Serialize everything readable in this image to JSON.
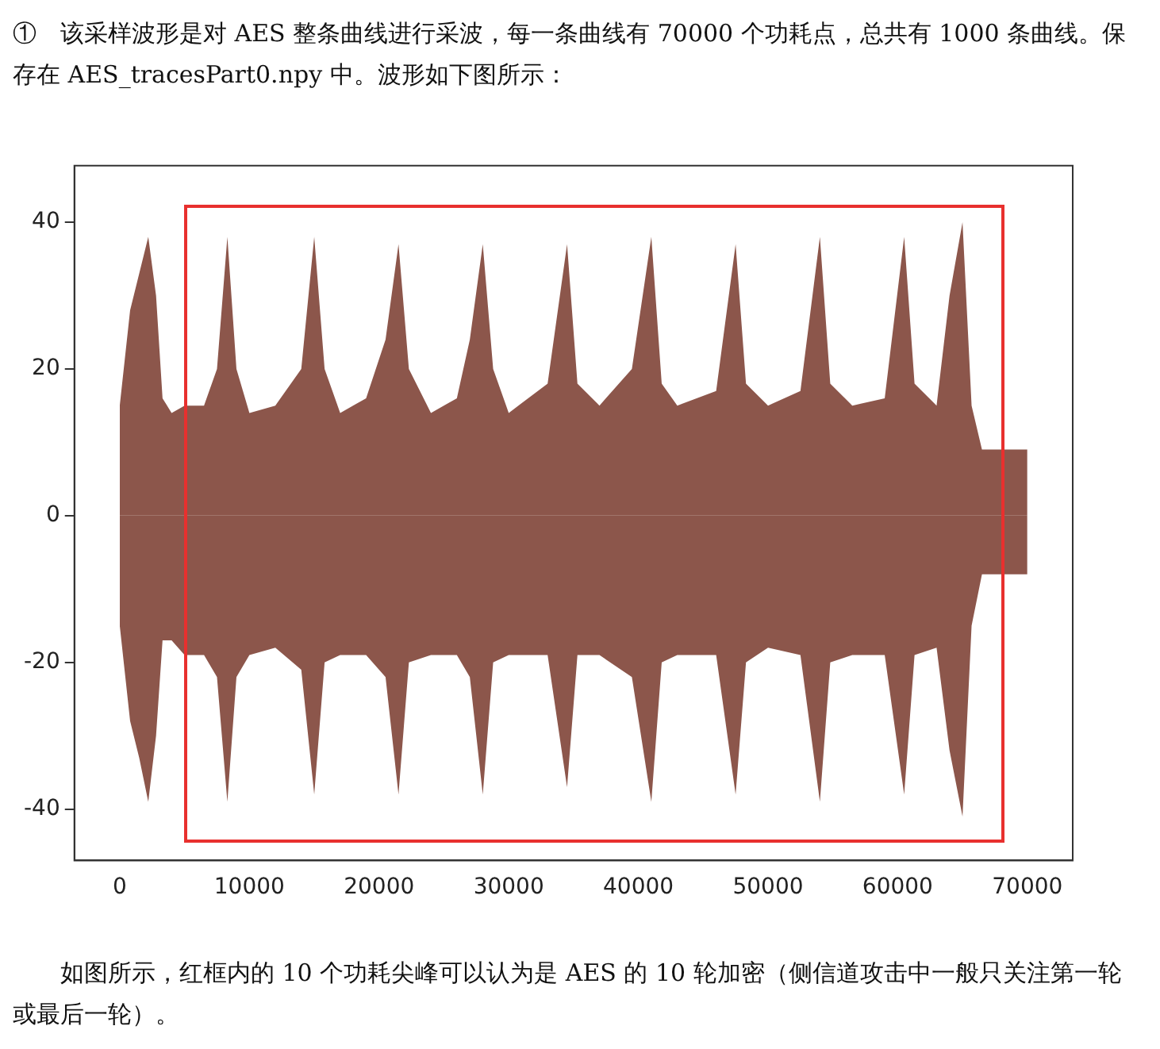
{
  "chart_data": {
    "type": "area",
    "title": "①　该采样波形是对 AES 整条曲线进行采波，每一条曲线有 70000 个功耗点，总共有 1000 条曲线。保存在 AES_tracesPart0.npy 中。波形如下图所示：",
    "annotations": [
      "如图所示，红框内的 10 个功耗尖峰可以认为是 AES 的 10 轮加密（侧信道攻击中一般只关注第一轮或最后一轮）。"
    ],
    "x": [
      0,
      800,
      1500,
      2200,
      2800,
      3300,
      4000,
      5000,
      6500,
      7500,
      8300,
      9000,
      10000,
      12000,
      14000,
      15000,
      15800,
      17000,
      19000,
      20500,
      21500,
      22300,
      24000,
      26000,
      27000,
      28000,
      28800,
      30000,
      33000,
      34500,
      35300,
      37000,
      39500,
      41000,
      41800,
      43000,
      46000,
      47500,
      48300,
      50000,
      52500,
      54000,
      54800,
      56500,
      59000,
      60500,
      61300,
      63000,
      64000,
      65000,
      65700,
      66500,
      70000
    ],
    "series": [
      {
        "color": "#8c564b",
        "values": [
          15,
          28,
          33,
          38,
          30,
          16,
          14,
          15,
          15,
          20,
          38,
          20,
          14,
          15,
          20,
          38,
          20,
          14,
          16,
          24,
          37,
          20,
          14,
          16,
          24,
          37,
          20,
          14,
          18,
          37,
          18,
          15,
          20,
          38,
          18,
          15,
          17,
          37,
          18,
          15,
          17,
          38,
          18,
          15,
          16,
          38,
          18,
          15,
          30,
          40,
          15,
          9,
          9
        ]
      },
      {
        "color": "#8c564b",
        "values": [
          -15,
          -28,
          -33,
          -39,
          -30,
          -17,
          -17,
          -19,
          -19,
          -22,
          -39,
          -22,
          -19,
          -18,
          -21,
          -38,
          -20,
          -19,
          -19,
          -22,
          -38,
          -20,
          -19,
          -19,
          -22,
          -38,
          -20,
          -19,
          -19,
          -37,
          -19,
          -19,
          -22,
          -39,
          -20,
          -19,
          -19,
          -38,
          -20,
          -18,
          -19,
          -39,
          -20,
          -19,
          -19,
          -38,
          -19,
          -18,
          -32,
          -41,
          -15,
          -8,
          -8
        ]
      }
    ],
    "xlim": [
      -3500,
      73500
    ],
    "xticks": [
      0,
      10000,
      20000,
      30000,
      40000,
      50000,
      60000,
      70000
    ],
    "ylim": [
      -47,
      47.7
    ],
    "yticks": [
      -40,
      -20,
      0,
      20,
      40
    ],
    "grid": false,
    "legend": false
  }
}
